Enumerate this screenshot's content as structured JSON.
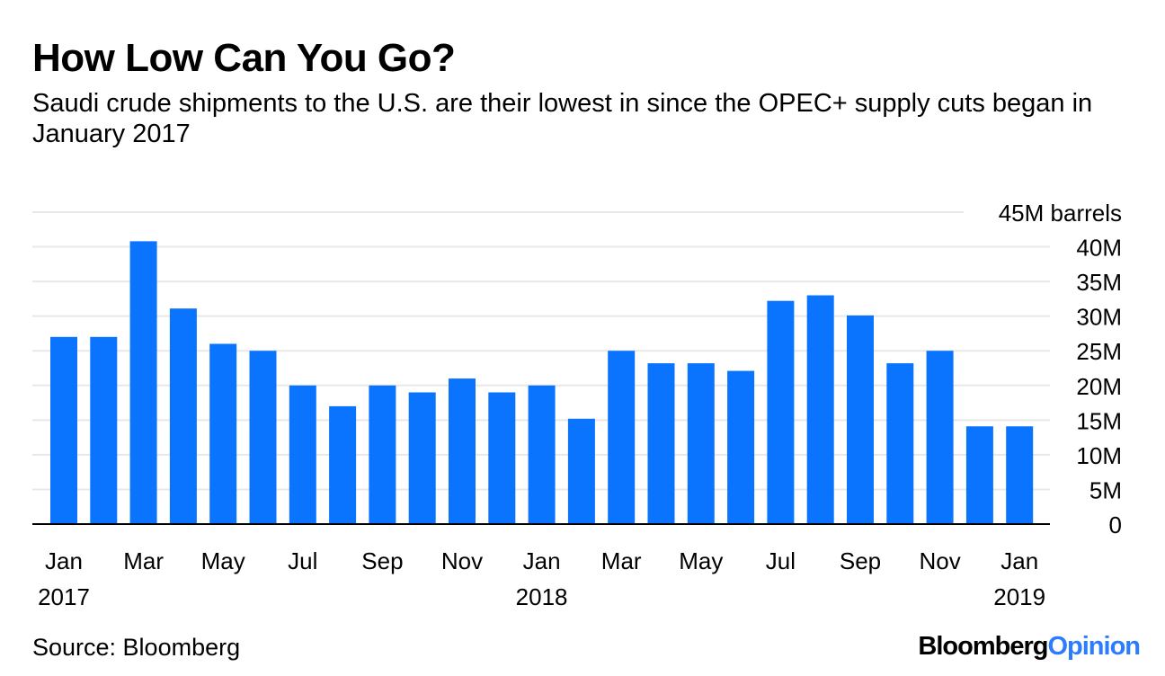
{
  "header": {
    "title": "How Low Can You Go?",
    "subtitle": "Saudi crude shipments to the U.S. are their lowest in since the OPEC+ supply cuts began in January 2017"
  },
  "footer": {
    "source": "Source: Bloomberg",
    "brand_part1": "Bloomberg",
    "brand_part2": "Opinion"
  },
  "colors": {
    "bar": "#0a74ff",
    "grid": "#e8e8e8",
    "axis": "#000000",
    "brand_accent": "#2b7cff"
  },
  "chart_data": {
    "type": "bar",
    "title": "How Low Can You Go?",
    "ylabel": "barrels",
    "unit_label": "45M barrels",
    "ylim": [
      0,
      45
    ],
    "yticks": [
      0,
      5,
      10,
      15,
      20,
      25,
      30,
      35,
      40,
      45
    ],
    "ytick_labels": [
      "0",
      "5M",
      "10M",
      "15M",
      "20M",
      "25M",
      "30M",
      "35M",
      "40M",
      "45M barrels"
    ],
    "categories": [
      "Jan 2017",
      "Feb 2017",
      "Mar 2017",
      "Apr 2017",
      "May 2017",
      "Jun 2017",
      "Jul 2017",
      "Aug 2017",
      "Sep 2017",
      "Oct 2017",
      "Nov 2017",
      "Dec 2017",
      "Jan 2018",
      "Feb 2018",
      "Mar 2018",
      "Apr 2018",
      "May 2018",
      "Jun 2018",
      "Jul 2018",
      "Aug 2018",
      "Sep 2018",
      "Oct 2018",
      "Nov 2018",
      "Dec 2018",
      "Jan 2019"
    ],
    "values": [
      27,
      27,
      40.8,
      31.1,
      26,
      25,
      20,
      17,
      20,
      19,
      21,
      19,
      20,
      15.2,
      25,
      23.2,
      23.2,
      22.1,
      32.2,
      33,
      30.1,
      23.2,
      25,
      14.1,
      14.1
    ],
    "xtick_labels": [
      {
        "index": 0,
        "month": "Jan",
        "year": "2017"
      },
      {
        "index": 2,
        "month": "Mar",
        "year": ""
      },
      {
        "index": 4,
        "month": "May",
        "year": ""
      },
      {
        "index": 6,
        "month": "Jul",
        "year": ""
      },
      {
        "index": 8,
        "month": "Sep",
        "year": ""
      },
      {
        "index": 10,
        "month": "Nov",
        "year": ""
      },
      {
        "index": 12,
        "month": "Jan",
        "year": "2018"
      },
      {
        "index": 14,
        "month": "Mar",
        "year": ""
      },
      {
        "index": 16,
        "month": "May",
        "year": ""
      },
      {
        "index": 18,
        "month": "Jul",
        "year": ""
      },
      {
        "index": 20,
        "month": "Sep",
        "year": ""
      },
      {
        "index": 22,
        "month": "Nov",
        "year": ""
      },
      {
        "index": 24,
        "month": "Jan",
        "year": "2019"
      }
    ],
    "grid": true,
    "legend": "none"
  }
}
